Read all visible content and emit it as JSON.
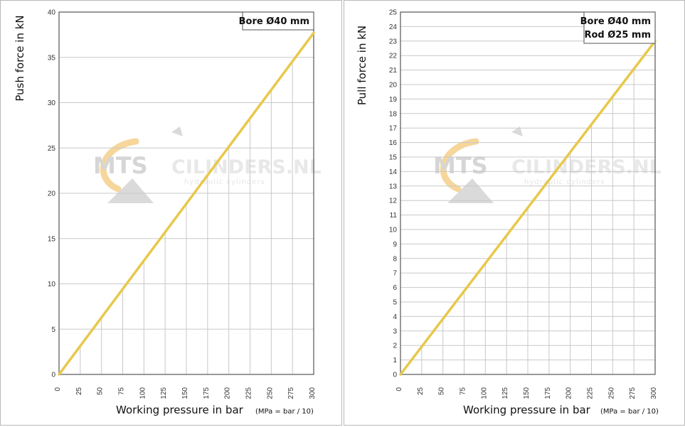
{
  "chart_data": [
    {
      "type": "line",
      "xlabel": "Working pressure in bar",
      "xlabel_note": "(MPa = bar / 10)",
      "ylabel": "Push force in kN",
      "legend": [
        "Bore Ø40 mm"
      ],
      "xlim": [
        0,
        300
      ],
      "ylim": [
        0,
        40
      ],
      "x_ticks": [
        0,
        25,
        50,
        75,
        100,
        125,
        150,
        175,
        200,
        225,
        250,
        275,
        300
      ],
      "y_ticks": [
        0,
        5,
        10,
        15,
        20,
        25,
        30,
        35,
        40
      ],
      "series": [
        {
          "x": [
            0,
            300
          ],
          "y": [
            0,
            37.7
          ],
          "color": "#e8c84a"
        }
      ],
      "grid": true
    },
    {
      "type": "line",
      "xlabel": "Working pressure in bar",
      "xlabel_note": "(MPa = bar / 10)",
      "ylabel": "Pull force in kN",
      "legend": [
        "Bore Ø40 mm",
        "Rod  Ø25 mm"
      ],
      "xlim": [
        0,
        300
      ],
      "ylim": [
        0,
        25
      ],
      "x_ticks": [
        0,
        25,
        50,
        75,
        100,
        125,
        150,
        175,
        200,
        225,
        250,
        275,
        300
      ],
      "y_ticks": [
        0,
        1,
        2,
        3,
        4,
        5,
        6,
        7,
        8,
        9,
        10,
        11,
        12,
        13,
        14,
        15,
        16,
        17,
        18,
        19,
        20,
        21,
        22,
        23,
        24,
        25
      ],
      "series": [
        {
          "x": [
            0,
            300
          ],
          "y": [
            0,
            23.0
          ],
          "color": "#e8c84a"
        }
      ],
      "grid": true
    }
  ],
  "watermark": {
    "brand_left": "MTS",
    "brand_right": "CILINDERS.NL",
    "tagline": "hydraulic cylinders",
    "accent_color": "#f0b54a"
  }
}
